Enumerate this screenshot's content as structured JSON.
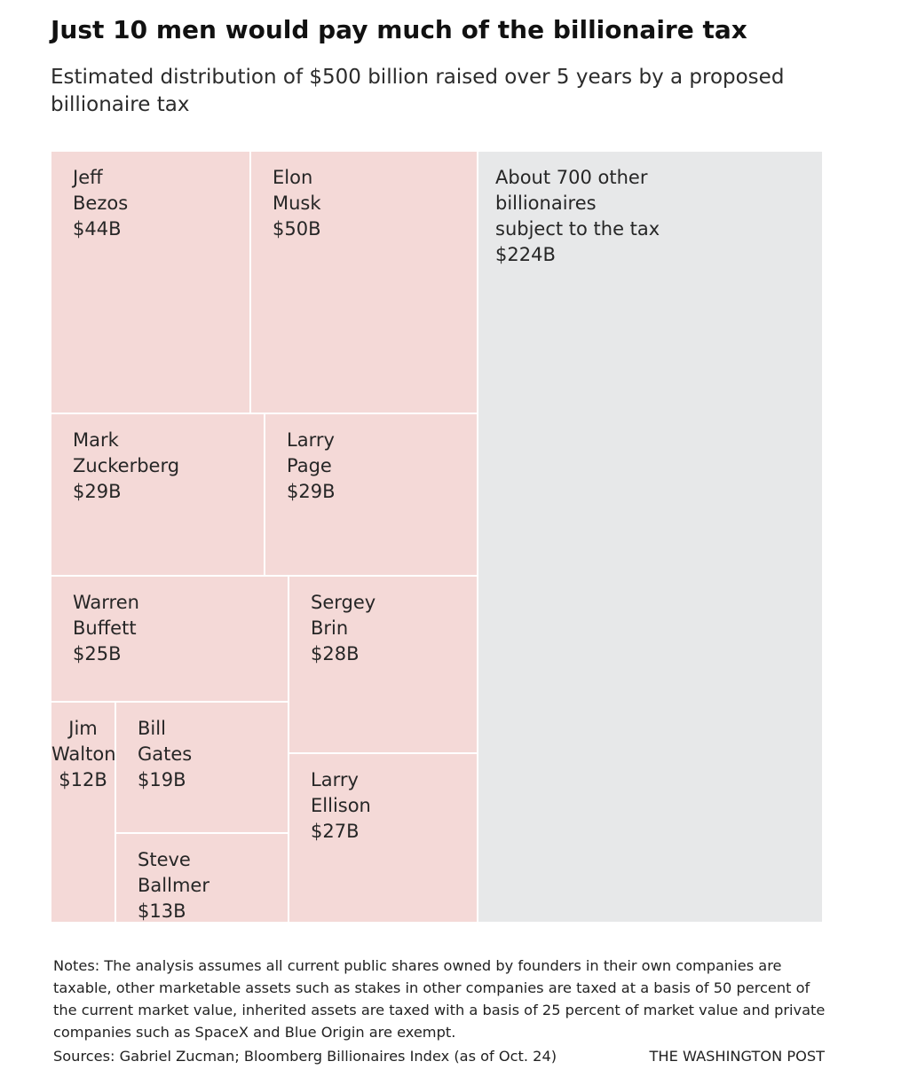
{
  "title": "Just 10 men would pay much of the billionaire tax",
  "subtitle": "Estimated distribution of $500 billion raised over 5 years by a proposed billionaire tax",
  "chart_data": {
    "type": "treemap",
    "unit": "billion dollars",
    "total": 500,
    "colors": {
      "person": "#f4d9d7",
      "others": "#e7e8e9"
    },
    "items": [
      {
        "name": "Jeff Bezos",
        "label_lines": [
          "Jeff",
          "Bezos"
        ],
        "value": 44,
        "value_label": "$44B"
      },
      {
        "name": "Elon Musk",
        "label_lines": [
          "Elon",
          "Musk"
        ],
        "value": 50,
        "value_label": "$50B"
      },
      {
        "name": "Mark Zuckerberg",
        "label_lines": [
          "Mark",
          "Zuckerberg"
        ],
        "value": 29,
        "value_label": "$29B"
      },
      {
        "name": "Larry Page",
        "label_lines": [
          "Larry",
          "Page"
        ],
        "value": 29,
        "value_label": "$29B"
      },
      {
        "name": "Warren Buffett",
        "label_lines": [
          "Warren",
          "Buffett"
        ],
        "value": 25,
        "value_label": "$25B"
      },
      {
        "name": "Sergey Brin",
        "label_lines": [
          "Sergey",
          "Brin"
        ],
        "value": 28,
        "value_label": "$28B"
      },
      {
        "name": "Jim Walton",
        "label_lines": [
          "Jim",
          "Walton"
        ],
        "value": 12,
        "value_label": "$12B"
      },
      {
        "name": "Bill Gates",
        "label_lines": [
          "Bill",
          "Gates"
        ],
        "value": 19,
        "value_label": "$19B"
      },
      {
        "name": "Steve Ballmer",
        "label_lines": [
          "Steve",
          "Ballmer"
        ],
        "value": 13,
        "value_label": "$13B"
      },
      {
        "name": "Larry Ellison",
        "label_lines": [
          "Larry",
          "Ellison"
        ],
        "value": 27,
        "value_label": "$27B"
      },
      {
        "name": "About 700 other billionaires subject to the tax",
        "label_lines": [
          "About 700 other",
          "billionaires",
          "subject to the tax"
        ],
        "value": 224,
        "value_label": "$224B"
      }
    ]
  },
  "notes": "Notes: The analysis assumes all current public shares owned by founders in their own companies are taxable, other marketable assets such as stakes in other companies are taxed at a basis of 50 percent of the current market value, inherited assets are taxed with a basis of 25 percent of market value and private companies such as SpaceX and Blue Origin are exempt.",
  "sources": "Sources: Gabriel Zucman; Bloomberg Billionaires Index (as of Oct. 24)",
  "credit": "THE WASHINGTON POST"
}
